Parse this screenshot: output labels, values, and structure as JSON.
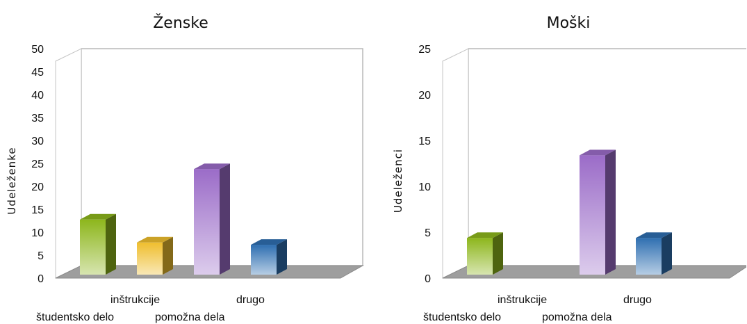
{
  "chart_data": [
    {
      "type": "bar",
      "title": "Ženske",
      "ylabel": "Udeleženke",
      "xlabel": "",
      "ylim": [
        0,
        50
      ],
      "yticks": [
        0,
        5,
        10,
        15,
        20,
        25,
        30,
        35,
        40,
        45,
        50
      ],
      "categories": [
        "študentsko delo",
        "inštrukcije",
        "pomožna dela",
        "drugo"
      ],
      "values": [
        12,
        7,
        23,
        6.5
      ],
      "colors": [
        "#8db61c",
        "#efbe2e",
        "#9b6cc8",
        "#2f6fb1"
      ],
      "grid": false,
      "legend": "none"
    },
    {
      "type": "bar",
      "title": "Moški",
      "ylabel": "Udeleženci",
      "xlabel": "",
      "ylim": [
        0,
        25
      ],
      "yticks": [
        0,
        5,
        10,
        15,
        20,
        25
      ],
      "categories": [
        "študentsko delo",
        "inštrukcije",
        "pomožna dela",
        "drugo"
      ],
      "values": [
        4,
        0,
        13,
        4
      ],
      "colors": [
        "#8db61c",
        "#efbe2e",
        "#9b6cc8",
        "#2f6fb1"
      ],
      "grid": false,
      "legend": "none"
    }
  ]
}
